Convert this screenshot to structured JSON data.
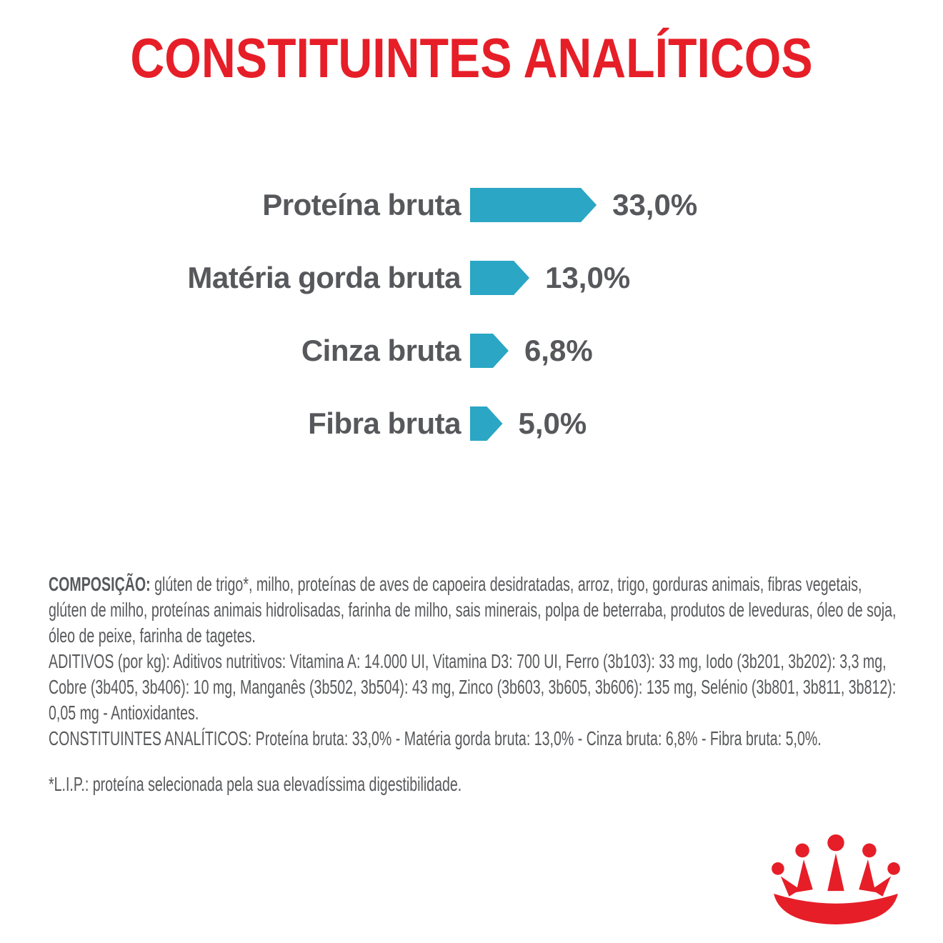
{
  "page": {
    "title": "CONSTITUINTES ANALÍTICOS"
  },
  "colors": {
    "brand_red": "#e61e28",
    "bar_teal": "#2ba6c4",
    "text_gray": "#58595b"
  },
  "chart_data": {
    "type": "bar",
    "orientation": "horizontal",
    "title": "CONSTITUINTES ANALÍTICOS",
    "unit": "%",
    "axis": "none",
    "grid": false,
    "legend": false,
    "bar_color": "#2ba6c4",
    "categories": [
      "Proteína bruta",
      "Matéria gorda bruta",
      "Cinza bruta",
      "Fibra bruta"
    ],
    "values": [
      33.0,
      13.0,
      6.8,
      5.0
    ],
    "rows": [
      {
        "label": "Proteína bruta",
        "value": 33.0,
        "value_label": "33,0%"
      },
      {
        "label": "Matéria gorda bruta",
        "value": 13.0,
        "value_label": "13,0%"
      },
      {
        "label": "Cinza bruta",
        "value": 6.8,
        "value_label": "6,8%"
      },
      {
        "label": "Fibra bruta",
        "value": 5.0,
        "value_label": "5,0%"
      }
    ]
  },
  "composition": {
    "heading": "COMPOSIÇÃO:",
    "ingredients": "glúten de trigo*, milho, proteínas de aves de capoeira desidratadas, arroz, trigo, gorduras animais, fibras vegetais, glúten de milho, proteínas animais hidrolisadas, farinha de milho, sais minerais, polpa de beterraba, produtos de leveduras, óleo de soja, óleo de peixe, farinha de tagetes.",
    "aditivos": "ADITIVOS (por kg): Aditivos nutritivos: Vitamina A: 14.000 UI, Vitamina D3: 700 UI, Ferro (3b103): 33 mg, Iodo (3b201, 3b202): 3,3 mg, Cobre (3b405, 3b406): 10 mg, Manganês (3b502, 3b504): 43 mg, Zinco (3b603, 3b605, 3b606): 135 mg, Selénio (3b801, 3b811, 3b812): 0,05 mg - Antioxidantes.",
    "constituintes": "CONSTITUINTES ANALÍTICOS: Proteína bruta: 33,0% - Matéria gorda bruta: 13,0% - Cinza bruta: 6,8% - Fibra bruta: 5,0%.",
    "footnote": "*L.I.P.: proteína selecionada pela sua elevadíssima digestibilidade."
  },
  "logo": {
    "name": "royal-canin-crown",
    "color": "#e61e28"
  }
}
